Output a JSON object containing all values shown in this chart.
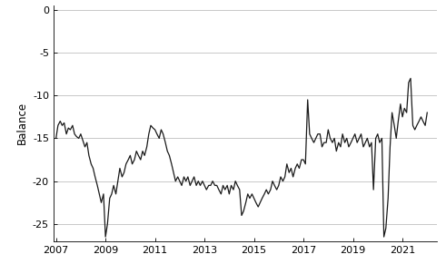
{
  "title": "",
  "ylabel": "Balance",
  "xlabel": "",
  "xlim_start": 2006.9,
  "xlim_end": 2022.4,
  "ylim": [
    -27,
    0.5
  ],
  "yticks": [
    0,
    -5,
    -10,
    -15,
    -20,
    -25
  ],
  "xticks": [
    2007,
    2009,
    2011,
    2013,
    2015,
    2017,
    2019,
    2021
  ],
  "line_color": "#1a1a1a",
  "line_width": 0.9,
  "background_color": "#ffffff",
  "grid_color": "#c8c8c8",
  "data": [
    [
      2007.0,
      -15.0
    ],
    [
      2007.08,
      -13.5
    ],
    [
      2007.17,
      -13.0
    ],
    [
      2007.25,
      -13.5
    ],
    [
      2007.33,
      -13.2
    ],
    [
      2007.42,
      -14.5
    ],
    [
      2007.5,
      -13.8
    ],
    [
      2007.58,
      -14.0
    ],
    [
      2007.67,
      -13.5
    ],
    [
      2007.75,
      -14.5
    ],
    [
      2007.83,
      -14.8
    ],
    [
      2007.92,
      -15.0
    ],
    [
      2008.0,
      -14.5
    ],
    [
      2008.08,
      -15.2
    ],
    [
      2008.17,
      -16.0
    ],
    [
      2008.25,
      -15.5
    ],
    [
      2008.33,
      -17.0
    ],
    [
      2008.42,
      -18.0
    ],
    [
      2008.5,
      -18.5
    ],
    [
      2008.58,
      -19.5
    ],
    [
      2008.67,
      -20.5
    ],
    [
      2008.75,
      -21.5
    ],
    [
      2008.83,
      -22.5
    ],
    [
      2008.92,
      -21.5
    ],
    [
      2009.0,
      -26.5
    ],
    [
      2009.08,
      -25.0
    ],
    [
      2009.17,
      -22.0
    ],
    [
      2009.25,
      -21.5
    ],
    [
      2009.33,
      -20.5
    ],
    [
      2009.42,
      -21.5
    ],
    [
      2009.5,
      -20.0
    ],
    [
      2009.58,
      -18.5
    ],
    [
      2009.67,
      -19.5
    ],
    [
      2009.75,
      -19.0
    ],
    [
      2009.83,
      -18.0
    ],
    [
      2009.92,
      -17.5
    ],
    [
      2010.0,
      -17.0
    ],
    [
      2010.08,
      -18.0
    ],
    [
      2010.17,
      -17.5
    ],
    [
      2010.25,
      -16.5
    ],
    [
      2010.33,
      -17.0
    ],
    [
      2010.42,
      -17.5
    ],
    [
      2010.5,
      -16.5
    ],
    [
      2010.58,
      -17.0
    ],
    [
      2010.67,
      -16.0
    ],
    [
      2010.75,
      -14.5
    ],
    [
      2010.83,
      -13.5
    ],
    [
      2010.92,
      -13.8
    ],
    [
      2011.0,
      -14.0
    ],
    [
      2011.08,
      -14.5
    ],
    [
      2011.17,
      -15.0
    ],
    [
      2011.25,
      -14.0
    ],
    [
      2011.33,
      -14.5
    ],
    [
      2011.42,
      -15.5
    ],
    [
      2011.5,
      -16.5
    ],
    [
      2011.58,
      -17.0
    ],
    [
      2011.67,
      -18.0
    ],
    [
      2011.75,
      -19.0
    ],
    [
      2011.83,
      -20.0
    ],
    [
      2011.92,
      -19.5
    ],
    [
      2012.0,
      -20.0
    ],
    [
      2012.08,
      -20.5
    ],
    [
      2012.17,
      -19.5
    ],
    [
      2012.25,
      -20.0
    ],
    [
      2012.33,
      -19.5
    ],
    [
      2012.42,
      -20.5
    ],
    [
      2012.5,
      -20.0
    ],
    [
      2012.58,
      -19.5
    ],
    [
      2012.67,
      -20.5
    ],
    [
      2012.75,
      -20.0
    ],
    [
      2012.83,
      -20.5
    ],
    [
      2012.92,
      -20.0
    ],
    [
      2013.0,
      -20.5
    ],
    [
      2013.08,
      -21.0
    ],
    [
      2013.17,
      -20.5
    ],
    [
      2013.25,
      -20.5
    ],
    [
      2013.33,
      -20.0
    ],
    [
      2013.42,
      -20.5
    ],
    [
      2013.5,
      -20.5
    ],
    [
      2013.58,
      -21.0
    ],
    [
      2013.67,
      -21.5
    ],
    [
      2013.75,
      -20.5
    ],
    [
      2013.83,
      -21.0
    ],
    [
      2013.92,
      -20.5
    ],
    [
      2014.0,
      -21.5
    ],
    [
      2014.08,
      -20.5
    ],
    [
      2014.17,
      -21.0
    ],
    [
      2014.25,
      -20.0
    ],
    [
      2014.33,
      -20.5
    ],
    [
      2014.42,
      -21.0
    ],
    [
      2014.5,
      -24.0
    ],
    [
      2014.58,
      -23.5
    ],
    [
      2014.67,
      -22.5
    ],
    [
      2014.75,
      -21.5
    ],
    [
      2014.83,
      -22.0
    ],
    [
      2014.92,
      -21.5
    ],
    [
      2015.0,
      -22.0
    ],
    [
      2015.08,
      -22.5
    ],
    [
      2015.17,
      -23.0
    ],
    [
      2015.25,
      -22.5
    ],
    [
      2015.33,
      -22.0
    ],
    [
      2015.42,
      -21.5
    ],
    [
      2015.5,
      -21.0
    ],
    [
      2015.58,
      -21.5
    ],
    [
      2015.67,
      -21.0
    ],
    [
      2015.75,
      -20.0
    ],
    [
      2015.83,
      -20.5
    ],
    [
      2015.92,
      -21.0
    ],
    [
      2016.0,
      -20.5
    ],
    [
      2016.08,
      -19.5
    ],
    [
      2016.17,
      -20.0
    ],
    [
      2016.25,
      -19.5
    ],
    [
      2016.33,
      -18.0
    ],
    [
      2016.42,
      -19.0
    ],
    [
      2016.5,
      -18.5
    ],
    [
      2016.58,
      -19.5
    ],
    [
      2016.67,
      -18.5
    ],
    [
      2016.75,
      -18.0
    ],
    [
      2016.83,
      -18.5
    ],
    [
      2016.92,
      -17.5
    ],
    [
      2017.0,
      -17.5
    ],
    [
      2017.08,
      -18.0
    ],
    [
      2017.17,
      -10.5
    ],
    [
      2017.25,
      -14.5
    ],
    [
      2017.33,
      -15.0
    ],
    [
      2017.42,
      -15.5
    ],
    [
      2017.5,
      -15.0
    ],
    [
      2017.58,
      -14.5
    ],
    [
      2017.67,
      -14.5
    ],
    [
      2017.75,
      -16.0
    ],
    [
      2017.83,
      -15.5
    ],
    [
      2017.92,
      -15.5
    ],
    [
      2018.0,
      -14.0
    ],
    [
      2018.08,
      -15.0
    ],
    [
      2018.17,
      -15.5
    ],
    [
      2018.25,
      -15.0
    ],
    [
      2018.33,
      -16.5
    ],
    [
      2018.42,
      -15.5
    ],
    [
      2018.5,
      -16.0
    ],
    [
      2018.58,
      -14.5
    ],
    [
      2018.67,
      -15.5
    ],
    [
      2018.75,
      -15.0
    ],
    [
      2018.83,
      -16.0
    ],
    [
      2018.92,
      -15.5
    ],
    [
      2019.0,
      -15.0
    ],
    [
      2019.08,
      -14.5
    ],
    [
      2019.17,
      -15.5
    ],
    [
      2019.25,
      -15.0
    ],
    [
      2019.33,
      -14.5
    ],
    [
      2019.42,
      -16.0
    ],
    [
      2019.5,
      -15.5
    ],
    [
      2019.58,
      -15.0
    ],
    [
      2019.67,
      -16.0
    ],
    [
      2019.75,
      -15.5
    ],
    [
      2019.83,
      -21.0
    ],
    [
      2019.92,
      -15.0
    ],
    [
      2020.0,
      -14.5
    ],
    [
      2020.08,
      -15.5
    ],
    [
      2020.17,
      -15.0
    ],
    [
      2020.25,
      -26.5
    ],
    [
      2020.33,
      -25.5
    ],
    [
      2020.42,
      -22.0
    ],
    [
      2020.5,
      -16.0
    ],
    [
      2020.58,
      -12.0
    ],
    [
      2020.67,
      -13.5
    ],
    [
      2020.75,
      -15.0
    ],
    [
      2020.83,
      -13.0
    ],
    [
      2020.92,
      -11.0
    ],
    [
      2021.0,
      -12.5
    ],
    [
      2021.08,
      -11.5
    ],
    [
      2021.17,
      -12.0
    ],
    [
      2021.25,
      -8.5
    ],
    [
      2021.33,
      -8.0
    ],
    [
      2021.42,
      -13.5
    ],
    [
      2021.5,
      -14.0
    ],
    [
      2021.58,
      -13.5
    ],
    [
      2021.67,
      -13.0
    ],
    [
      2021.75,
      -12.5
    ],
    [
      2021.83,
      -13.0
    ],
    [
      2021.92,
      -13.5
    ],
    [
      2022.0,
      -12.0
    ]
  ]
}
